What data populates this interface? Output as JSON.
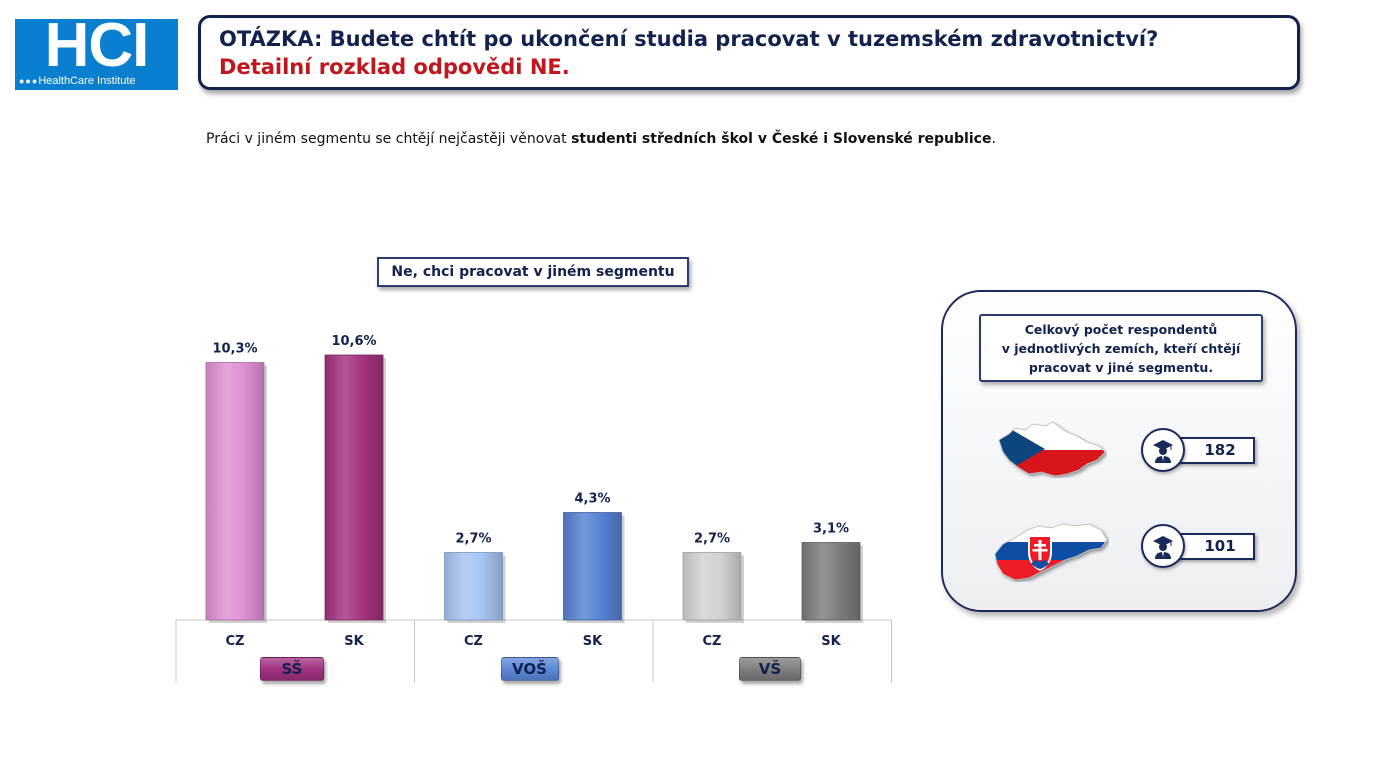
{
  "logo": {
    "big": "HCI",
    "small": "HealthCare Institute"
  },
  "header": {
    "question": "OTÁZKA: Budete chtít po ukončení studia pracovat v tuzemském zdravotnictví?",
    "detail": "Detailní rozklad odpovědi NE."
  },
  "summary": {
    "prefix": "Práci v jiném segmentu se chtějí nejčastěji věnovat ",
    "bold": "studenti středních škol v České i Slovenské republice",
    "suffix": "."
  },
  "chart_title": "Ne, chci pracovat v jiném segmentu",
  "chart_data": {
    "type": "bar",
    "title": "Ne, chci pracovat v jiném segmentu",
    "groups": [
      {
        "name": "SŠ",
        "color": "#a0307f",
        "bars": [
          {
            "category": "CZ",
            "value": 10.3,
            "label": "10,3%",
            "color": "#e090d4"
          },
          {
            "category": "SK",
            "value": 10.6,
            "label": "10,6%",
            "color": "#a3327f"
          }
        ]
      },
      {
        "name": "VOŠ",
        "color": "#5b86d6",
        "bars": [
          {
            "category": "CZ",
            "value": 2.7,
            "label": "2,7%",
            "color": "#a7c5f3"
          },
          {
            "category": "SK",
            "value": 4.3,
            "label": "4,3%",
            "color": "#5681d5"
          }
        ]
      },
      {
        "name": "VŠ",
        "color": "#7c7c7c",
        "bars": [
          {
            "category": "CZ",
            "value": 2.7,
            "label": "2,7%",
            "color": "#d2d2d2"
          },
          {
            "category": "SK",
            "value": 3.1,
            "label": "3,1%",
            "color": "#7c7c7c"
          }
        ]
      }
    ],
    "ylim": [
      0,
      12
    ],
    "grid": false,
    "legend": "none"
  },
  "panel": {
    "title_lines": [
      "Celkový počet respondentů",
      "v jednotlivých zemích, kteří chtějí",
      "pracovat v jiné segmentu."
    ],
    "countries": [
      {
        "country": "Czech Republic",
        "icon": "czech-flag-map",
        "count": "182"
      },
      {
        "country": "Slovakia",
        "icon": "slovak-flag-map",
        "count": "101"
      }
    ],
    "respondent_icon": "graduate-icon"
  }
}
